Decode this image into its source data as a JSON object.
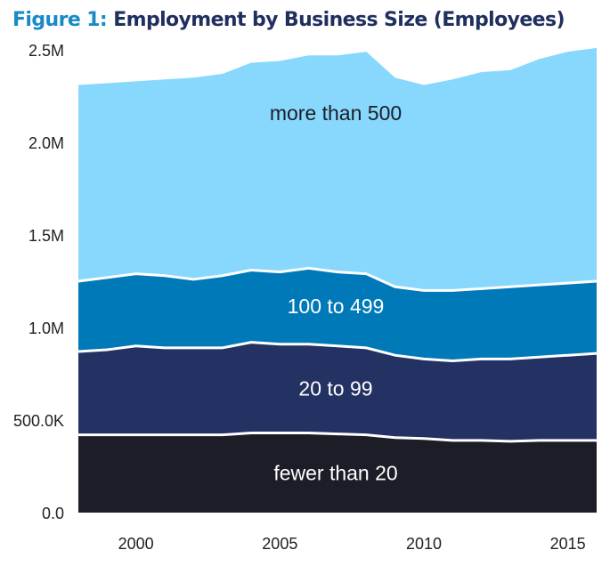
{
  "title": {
    "prefix": "Figure 1:",
    "text": "Employment by Business Size (Employees)"
  },
  "colors": {
    "title_prefix": "#1a8ac7",
    "title_text": "#1f2f5e",
    "separator": "#ffffff"
  },
  "chart_data": {
    "type": "area",
    "stacked": true,
    "title": "Figure 1: Employment by Business Size (Employees)",
    "xlabel": "",
    "ylabel": "",
    "x": [
      1998,
      1999,
      2000,
      2001,
      2002,
      2003,
      2004,
      2005,
      2006,
      2007,
      2008,
      2009,
      2010,
      2011,
      2012,
      2013,
      2014,
      2015,
      2016
    ],
    "xlim": [
      1998,
      2016
    ],
    "ylim": [
      0,
      2500000
    ],
    "x_ticks": [
      2000,
      2005,
      2010,
      2015
    ],
    "x_tick_labels": [
      "2000",
      "2005",
      "2010",
      "2015"
    ],
    "y_ticks": [
      0,
      500000,
      1000000,
      1500000,
      2000000,
      2500000
    ],
    "y_tick_labels": [
      "0.0",
      "500.0K",
      "1.0M",
      "1.5M",
      "2.0M",
      "2.5M"
    ],
    "grid": false,
    "legend": "none (labels inside areas)",
    "series": [
      {
        "name": "fewer than 20",
        "color": "#1c1d27",
        "label_color": "#ffffff",
        "values": [
          420000,
          420000,
          420000,
          420000,
          420000,
          420000,
          430000,
          430000,
          430000,
          425000,
          420000,
          405000,
          400000,
          390000,
          390000,
          385000,
          390000,
          390000,
          390000
        ]
      },
      {
        "name": "20 to 99",
        "color": "#233163",
        "label_color": "#ffffff",
        "values": [
          450000,
          460000,
          480000,
          470000,
          470000,
          470000,
          490000,
          480000,
          480000,
          475000,
          470000,
          445000,
          430000,
          430000,
          440000,
          445000,
          450000,
          460000,
          470000
        ]
      },
      {
        "name": "100 to 499",
        "color": "#0079b8",
        "label_color": "#ffffff",
        "values": [
          380000,
          390000,
          390000,
          390000,
          370000,
          390000,
          390000,
          390000,
          410000,
          400000,
          400000,
          370000,
          370000,
          380000,
          380000,
          390000,
          390000,
          390000,
          390000
        ]
      },
      {
        "name": "more than 500",
        "color": "#87d8fc",
        "label_color": "#1c1d27",
        "values": [
          1060000,
          1050000,
          1040000,
          1060000,
          1090000,
          1090000,
          1120000,
          1140000,
          1150000,
          1170000,
          1200000,
          1130000,
          1110000,
          1140000,
          1170000,
          1170000,
          1220000,
          1250000,
          1260000
        ]
      }
    ]
  }
}
